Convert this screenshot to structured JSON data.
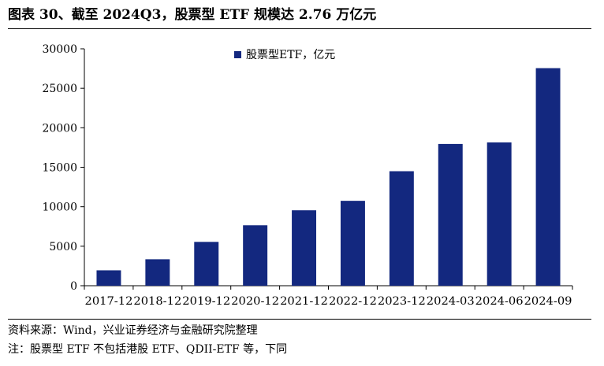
{
  "title": "图表 30、截至 2024Q3，股票型 ETF 规模达 2.76 万亿元",
  "source": "资料来源：Wind，兴业证券经济与金融研究院整理",
  "note": "注：股票型 ETF 不包括港股 ETF、QDII-ETF 等，下同",
  "colors": {
    "bar": "#13287F",
    "axis": "#000000",
    "text": "#000000"
  },
  "chart_data": {
    "type": "bar",
    "title": "",
    "xlabel": "",
    "ylabel": "",
    "categories": [
      "2017-12",
      "2018-12",
      "2019-12",
      "2020-12",
      "2021-12",
      "2022-12",
      "2023-12",
      "2024-03",
      "2024-06",
      "2024-09"
    ],
    "series": [
      {
        "name": "股票型ETF，亿元",
        "values": [
          1950,
          3350,
          5550,
          7650,
          9550,
          10750,
          14500,
          17950,
          18150,
          27550
        ]
      }
    ],
    "ylim": [
      0,
      30000
    ],
    "yticks": [
      0,
      5000,
      10000,
      15000,
      20000,
      25000,
      30000
    ],
    "grid": false,
    "legend": "top-center"
  }
}
